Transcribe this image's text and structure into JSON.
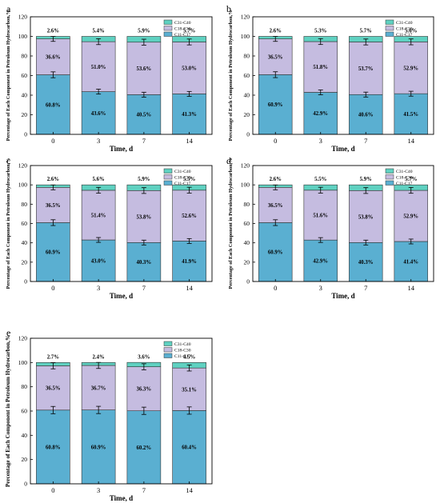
{
  "figure": {
    "colors": {
      "C11-C17": "#5aafd1",
      "C18-C30": "#c5bce0",
      "C31-C40": "#5fd1c1"
    },
    "legend_labels": [
      "C31-C40",
      "C18-C30",
      "C11-C17"
    ]
  },
  "chart_data": [
    {
      "panel_label": "a",
      "type": "bar",
      "stacked": true,
      "categories": [
        "0",
        "3",
        "7",
        "14"
      ],
      "xlabel": "Time, d",
      "ylabel": "Percentage of Each Component in Petroleum Hydrocarbon,%",
      "ylim": [
        0,
        120
      ],
      "yticks": [
        0,
        20,
        40,
        60,
        80,
        100,
        120
      ],
      "legend_position": "top-right",
      "series": [
        {
          "name": "C11-C17",
          "values": [
            60.8,
            43.6,
            40.5,
            41.3
          ],
          "labels": [
            "60.8%",
            "43.6%",
            "40.5%",
            "41.3%"
          ]
        },
        {
          "name": "C18-C30",
          "values": [
            36.6,
            51.0,
            53.6,
            53.0
          ],
          "labels": [
            "36.6%",
            "51.0%",
            "53.6%",
            "53.0%"
          ]
        },
        {
          "name": "C31-C40",
          "values": [
            2.6,
            5.4,
            5.9,
            5.7
          ],
          "labels": [
            "2.6%",
            "5.4%",
            "5.9%",
            "5.7%"
          ]
        }
      ],
      "error_bars": {
        "C11-C17": [
          3,
          2.5,
          2.5,
          2.5
        ],
        "C18-C30": [
          2.5,
          3,
          3,
          3
        ]
      }
    },
    {
      "panel_label": "b",
      "type": "bar",
      "stacked": true,
      "categories": [
        "0",
        "3",
        "7",
        "14"
      ],
      "xlabel": "Time, d",
      "ylabel": "Percentage of Each Component in Petroleum Hydrocarbon,%",
      "ylim": [
        0,
        120
      ],
      "yticks": [
        0,
        20,
        40,
        60,
        80,
        100,
        120
      ],
      "legend_position": "top-right",
      "series": [
        {
          "name": "C11-C17",
          "values": [
            60.9,
            42.9,
            40.6,
            41.5
          ],
          "labels": [
            "60.9%",
            "42.9%",
            "40.6%",
            "41.5%"
          ]
        },
        {
          "name": "C18-C30",
          "values": [
            36.5,
            51.8,
            53.7,
            52.9
          ],
          "labels": [
            "36.5%",
            "51.8%",
            "53.7%",
            "52.9%"
          ]
        },
        {
          "name": "C31-C40",
          "values": [
            2.6,
            5.3,
            5.7,
            5.6
          ],
          "labels": [
            "2.6%",
            "5.3%",
            "5.7%",
            "5.6%"
          ]
        }
      ],
      "error_bars": {
        "C11-C17": [
          3,
          2.5,
          2.5,
          2.5
        ],
        "C18-C30": [
          2.5,
          3,
          3,
          3
        ]
      }
    },
    {
      "panel_label": "c",
      "type": "bar",
      "stacked": true,
      "categories": [
        "0",
        "3",
        "7",
        "14"
      ],
      "xlabel": "Time, d",
      "ylabel": "Percentage of Each Component in Petroleum Hydrocarbon,%",
      "ylim": [
        0,
        120
      ],
      "yticks": [
        0,
        20,
        40,
        60,
        80,
        100,
        120
      ],
      "legend_position": "top-right",
      "series": [
        {
          "name": "C11-C17",
          "values": [
            60.9,
            43.0,
            40.3,
            41.9
          ],
          "labels": [
            "60.9%",
            "43.0%",
            "40.3%",
            "41.9%"
          ]
        },
        {
          "name": "C18-C30",
          "values": [
            36.5,
            51.4,
            53.8,
            52.6
          ],
          "labels": [
            "36.5%",
            "51.4%",
            "53.8%",
            "52.6%"
          ]
        },
        {
          "name": "C31-C40",
          "values": [
            2.6,
            5.6,
            5.9,
            5.5
          ],
          "labels": [
            "2.6%",
            "5.6%",
            "5.9%",
            "5.5%"
          ]
        }
      ],
      "error_bars": {
        "C11-C17": [
          3,
          2.5,
          2.5,
          2.5
        ],
        "C18-C30": [
          2.5,
          3,
          3,
          3
        ]
      }
    },
    {
      "panel_label": "d",
      "type": "bar",
      "stacked": true,
      "categories": [
        "0",
        "3",
        "7",
        "14"
      ],
      "xlabel": "Time, d",
      "ylabel": "Percentage of Each Component in Petroleum Hydrocarbon,%",
      "ylim": [
        0,
        120
      ],
      "yticks": [
        0,
        20,
        40,
        60,
        80,
        100,
        120
      ],
      "legend_position": "top-right",
      "series": [
        {
          "name": "C11-C17",
          "values": [
            60.9,
            42.9,
            40.3,
            41.4
          ],
          "labels": [
            "60.9%",
            "42.9%",
            "40.3%",
            "41.4%"
          ]
        },
        {
          "name": "C18-C30",
          "values": [
            36.5,
            51.6,
            53.8,
            52.9
          ],
          "labels": [
            "36.5%",
            "51.6%",
            "53.8%",
            "52.9%"
          ]
        },
        {
          "name": "C31-C40",
          "values": [
            2.6,
            5.5,
            5.9,
            5.7
          ],
          "labels": [
            "2.6%",
            "5.5%",
            "5.9%",
            "5.7%"
          ]
        }
      ],
      "error_bars": {
        "C11-C17": [
          3,
          2.5,
          2.5,
          2.5
        ],
        "C18-C30": [
          2.5,
          3,
          3,
          3
        ]
      }
    },
    {
      "panel_label": "e",
      "type": "bar",
      "stacked": true,
      "categories": [
        "0",
        "3",
        "7",
        "14"
      ],
      "xlabel": "Time, d",
      "ylabel": "Percentage of Each Component in Petroleum Hydrocarbon,%",
      "ylim": [
        0,
        120
      ],
      "yticks": [
        0,
        20,
        40,
        60,
        80,
        100,
        120
      ],
      "legend_position": "top-right",
      "series": [
        {
          "name": "C11-C17",
          "values": [
            60.8,
            60.9,
            60.2,
            60.4
          ],
          "labels": [
            "60.8%",
            "60.9%",
            "60.2%",
            "60.4%"
          ]
        },
        {
          "name": "C18-C30",
          "values": [
            36.5,
            36.7,
            36.3,
            35.1
          ],
          "labels": [
            "36.5%",
            "36.7%",
            "36.3%",
            "35.1%"
          ]
        },
        {
          "name": "C31-C40",
          "values": [
            2.7,
            2.4,
            3.6,
            4.5
          ],
          "labels": [
            "2.7%",
            "2.4%",
            "3.6%",
            "4.5%"
          ]
        }
      ],
      "error_bars": {
        "C11-C17": [
          3,
          3,
          3,
          3
        ],
        "C18-C30": [
          2.5,
          2.5,
          2.5,
          2.5
        ]
      }
    }
  ]
}
